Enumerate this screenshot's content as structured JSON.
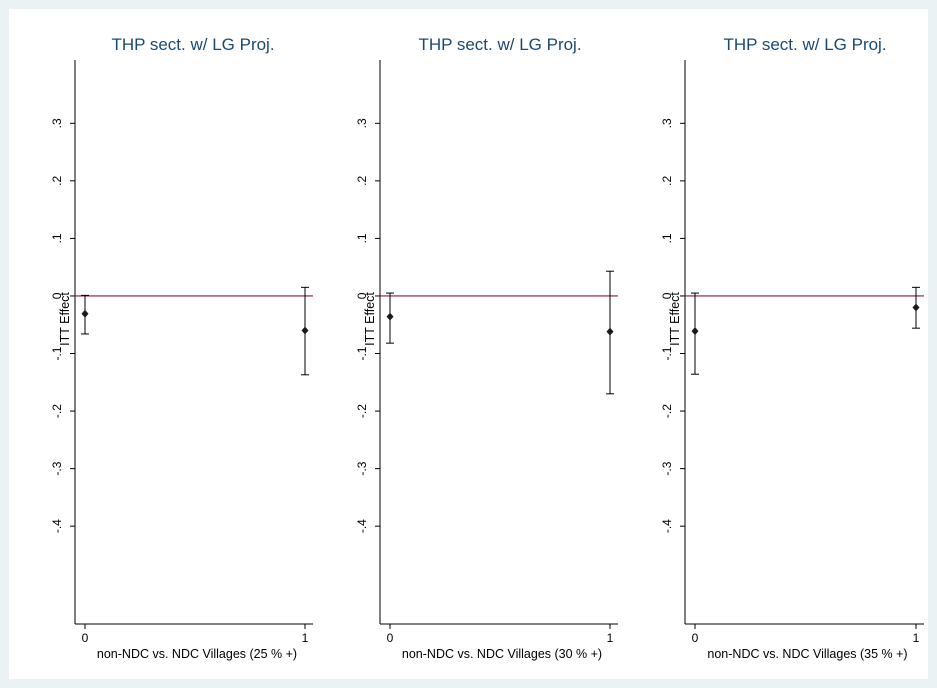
{
  "colors": {
    "background": "#eaf2f3",
    "plot_background": "#ffffff",
    "title": "#1a4a72",
    "reference_line": "#8b1a3a",
    "marker": "#1a1a1a"
  },
  "chart_data": [
    {
      "type": "scatter",
      "title": "THP sect. w/ LG Proj.",
      "xlabel": "non-NDC vs. NDC Villages (25 % +)",
      "ylabel": "ITT Effect",
      "x_ticks": [
        "0",
        "1"
      ],
      "y_ticks": [
        ".3",
        ".2",
        ".1",
        "0",
        "-.1",
        "-.2",
        "-.3",
        "-.4"
      ],
      "xlim": [
        0,
        1
      ],
      "ylim": [
        -0.57,
        0.41
      ],
      "reference_line_y": 0,
      "points": [
        {
          "x": 0,
          "y": -0.031,
          "ci_low": -0.066,
          "ci_high": 0.001
        },
        {
          "x": 1,
          "y": -0.06,
          "ci_low": -0.137,
          "ci_high": 0.015
        }
      ]
    },
    {
      "type": "scatter",
      "title": "THP sect. w/ LG Proj.",
      "xlabel": "non-NDC vs. NDC Villages (30 % +)",
      "ylabel": "ITT Effect",
      "x_ticks": [
        "0",
        "1"
      ],
      "y_ticks": [
        ".3",
        ".2",
        ".1",
        "0",
        "-.1",
        "-.2",
        "-.3",
        "-.4"
      ],
      "xlim": [
        0,
        1
      ],
      "ylim": [
        -0.57,
        0.41
      ],
      "reference_line_y": 0,
      "points": [
        {
          "x": 0,
          "y": -0.036,
          "ci_low": -0.082,
          "ci_high": 0.005
        },
        {
          "x": 1,
          "y": -0.062,
          "ci_low": -0.17,
          "ci_high": 0.043
        }
      ]
    },
    {
      "type": "scatter",
      "title": "THP sect. w/ LG Proj.",
      "xlabel": "non-NDC vs. NDC Villages (35 % +)",
      "ylabel": "ITT Effect",
      "x_ticks": [
        "0",
        "1"
      ],
      "y_ticks": [
        ".3",
        ".2",
        ".1",
        "0",
        "-.1",
        "-.2",
        "-.3",
        "-.4"
      ],
      "xlim": [
        0,
        1
      ],
      "ylim": [
        -0.57,
        0.41
      ],
      "reference_line_y": 0,
      "points": [
        {
          "x": 0,
          "y": -0.061,
          "ci_low": -0.136,
          "ci_high": 0.005
        },
        {
          "x": 1,
          "y": -0.02,
          "ci_low": -0.056,
          "ci_high": 0.015
        }
      ]
    }
  ]
}
